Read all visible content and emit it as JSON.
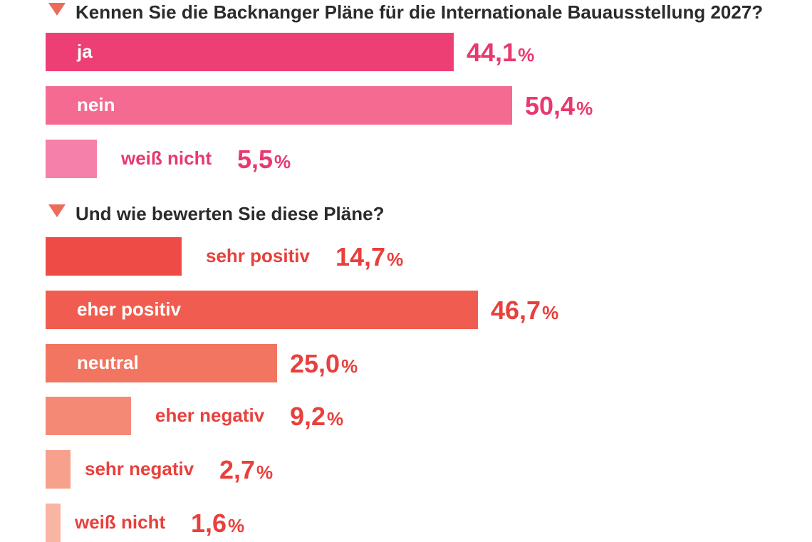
{
  "chart_data": [
    {
      "type": "bar",
      "orientation": "horizontal",
      "title": "Kennen Sie die Backnanger Pläne für die Internationale Bauausstellung 2027?",
      "unit": "%",
      "categories": [
        "ja",
        "nein",
        "weiß nicht"
      ],
      "values": [
        44.1,
        50.4,
        5.5
      ],
      "value_labels": [
        "44,1",
        "50,4",
        "5,5"
      ],
      "colors": [
        "#ee3f75",
        "#f46a90",
        "#f580a9"
      ],
      "label_color": "#e8396f"
    },
    {
      "type": "bar",
      "orientation": "horizontal",
      "title": "Und wie bewerten Sie diese Pläne?",
      "unit": "%",
      "categories": [
        "sehr positiv",
        "eher positiv",
        "neutral",
        "eher negativ",
        "sehr negativ",
        "weiß nicht"
      ],
      "values": [
        14.7,
        46.7,
        25.0,
        9.2,
        2.7,
        1.6
      ],
      "value_labels": [
        "14,7",
        "46,7",
        "25,0",
        "9,2",
        "2,7",
        "1,6"
      ],
      "colors": [
        "#ef4b46",
        "#f05d50",
        "#f27561",
        "#f48a75",
        "#f7a08c",
        "#f8b5a3"
      ],
      "label_color": "#e8403c"
    }
  ],
  "triangle_color": "#ec6b5b"
}
